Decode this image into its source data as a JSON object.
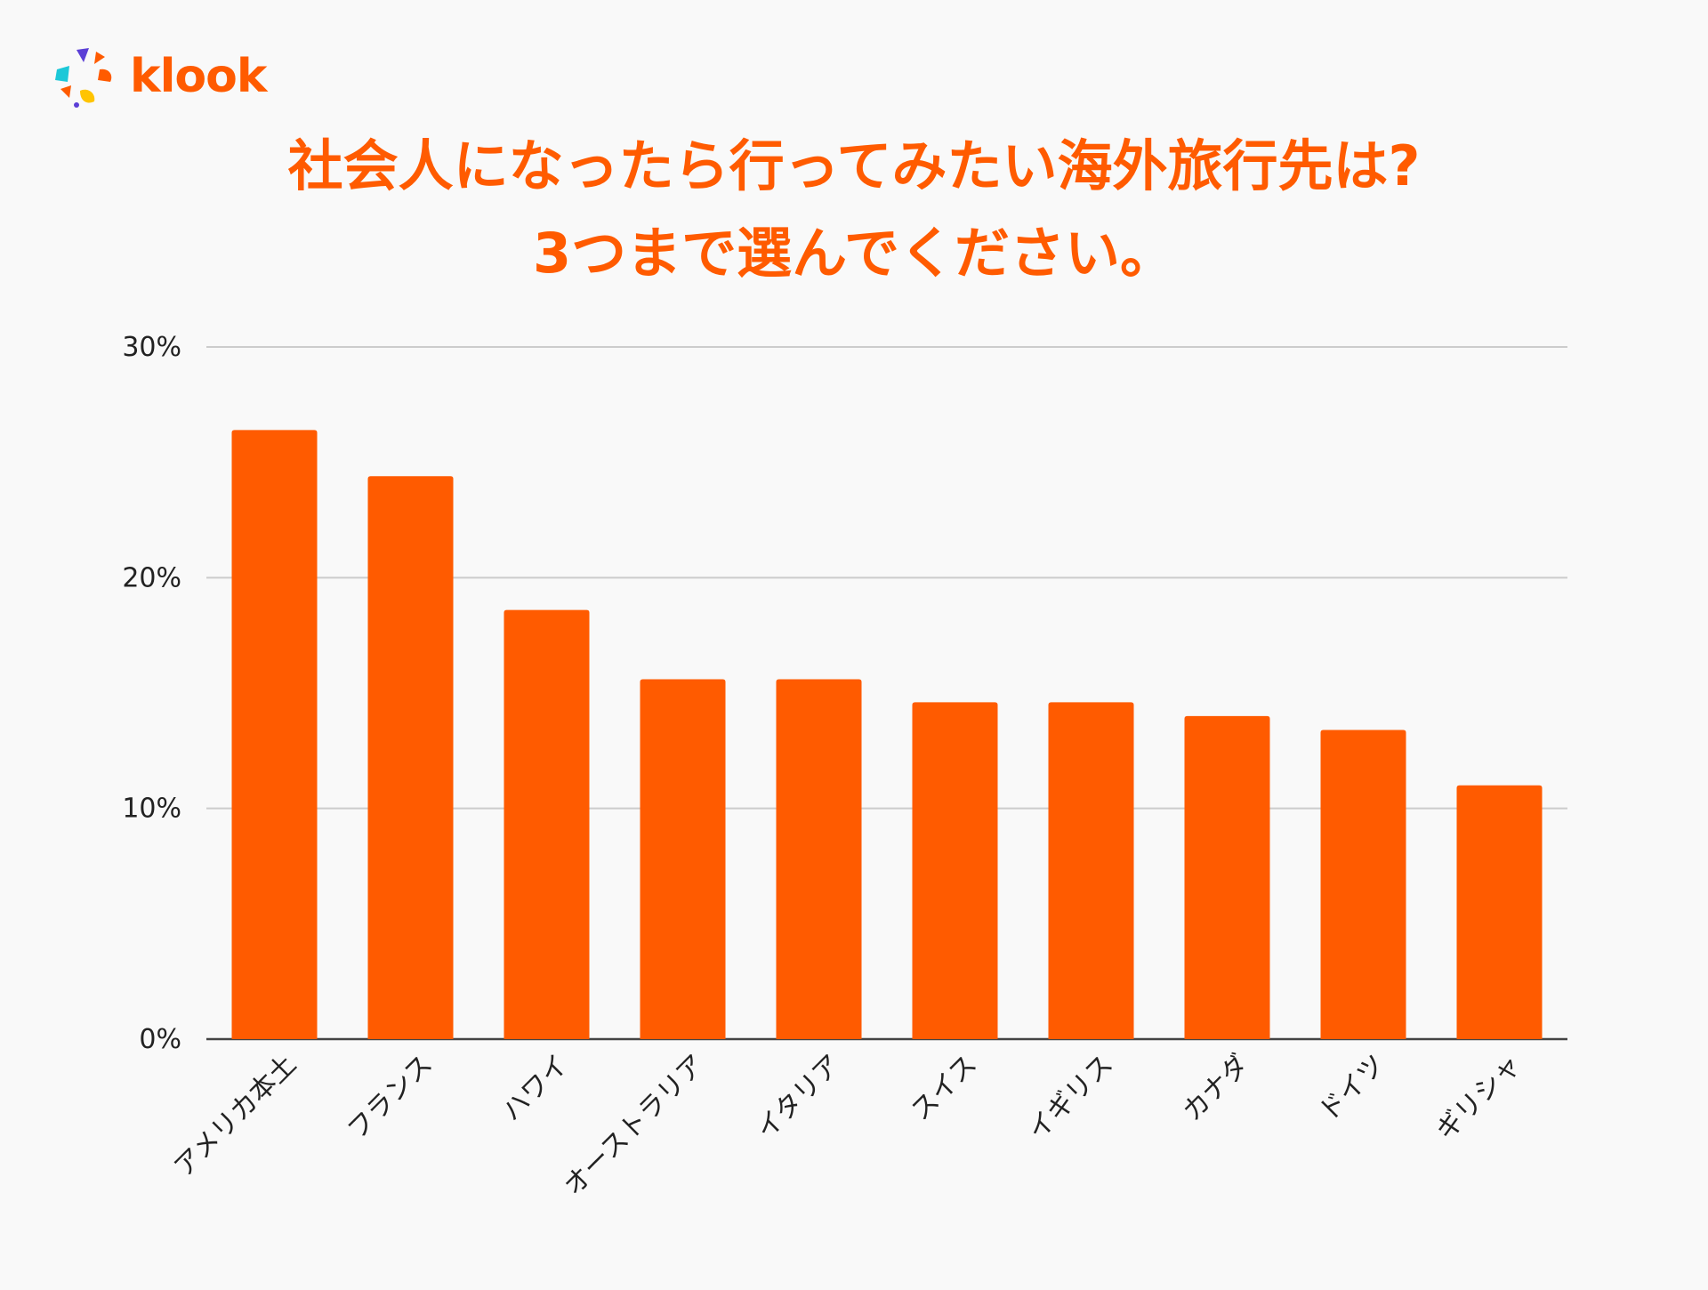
{
  "brand": {
    "name": "klook",
    "color": "#ff5b00",
    "logo_icon": "klook-flower-logo-icon"
  },
  "chart_data": {
    "type": "bar",
    "title_lines": [
      "社会人になったら行ってみたい海外旅行先は?",
      "3つまで選んでください。"
    ],
    "categories": [
      "アメリカ本土",
      "フランス",
      "ハワイ",
      "オーストラリア",
      "イタリア",
      "スイス",
      "イギリス",
      "カナダ",
      "ドイツ",
      "ギリシャ"
    ],
    "values": [
      26.4,
      24.4,
      18.6,
      15.6,
      15.6,
      14.6,
      14.6,
      14.0,
      13.4,
      11.0
    ],
    "ylim": [
      0,
      30
    ],
    "yticks": [
      0,
      10,
      20,
      30
    ],
    "ytick_labels": [
      "0%",
      "10%",
      "20%",
      "30%"
    ],
    "xlabel": "",
    "ylabel": "",
    "grid": true,
    "bar_color": "#ff5b00",
    "grid_color": "#cccccc",
    "baseline_color": "#444444"
  }
}
